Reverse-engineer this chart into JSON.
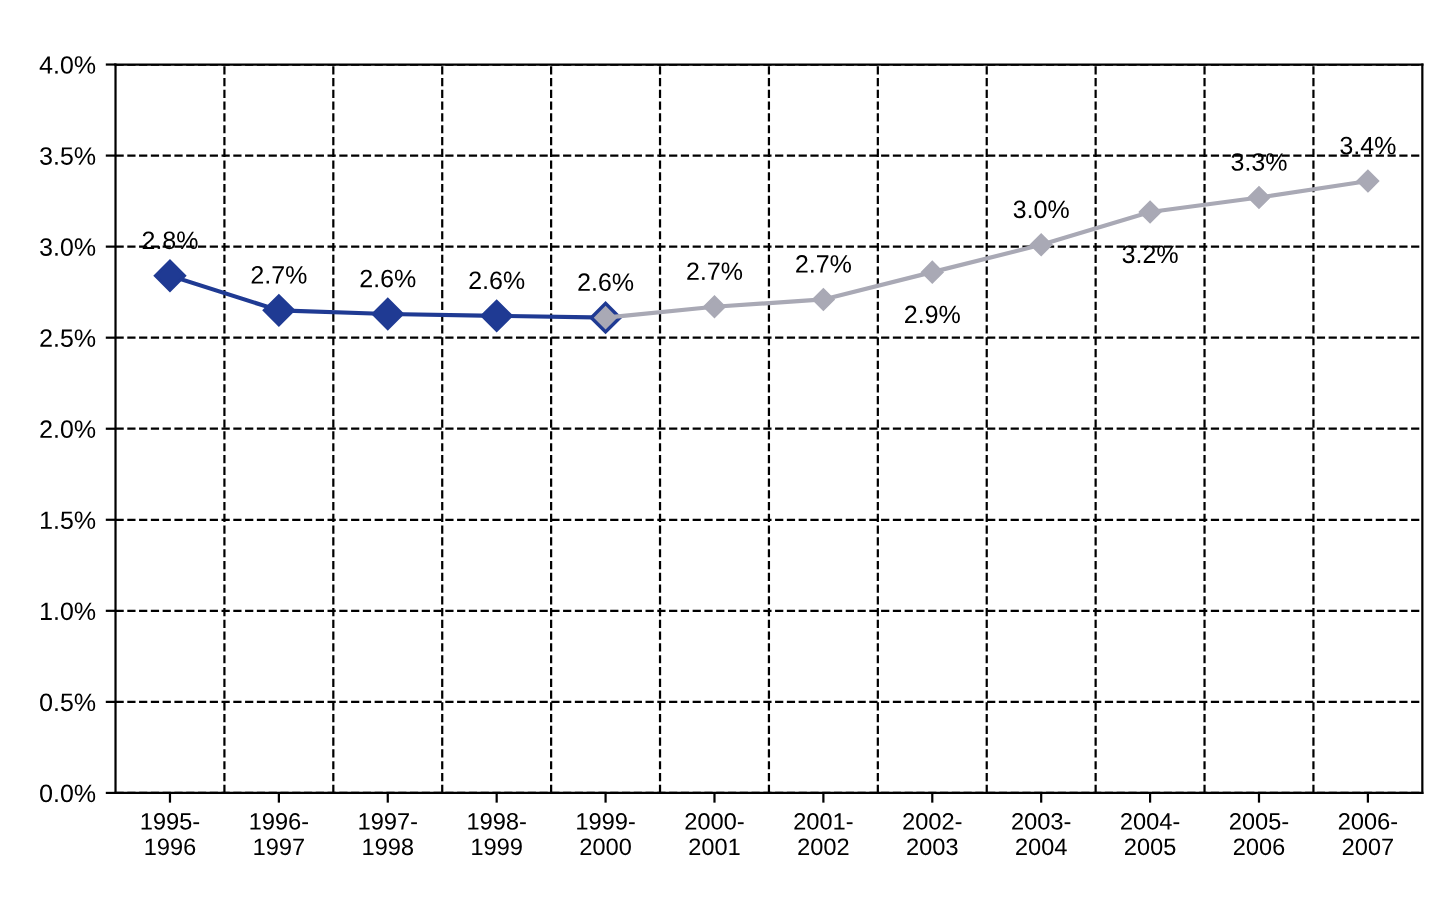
{
  "chart_data": {
    "type": "line",
    "categories": [
      "1995-\n1996",
      "1996-\n1997",
      "1997-\n1998",
      "1998-\n1999",
      "1999-\n2000",
      "2000-\n2001",
      "2001-\n2002",
      "2002-\n2003",
      "2003-\n2004",
      "2004-\n2005",
      "2005-\n2006",
      "2006-\n2007"
    ],
    "series": [
      {
        "color": "#1f3a93",
        "values": [
          2.84,
          2.65,
          2.63,
          2.62,
          2.61,
          null,
          null,
          null,
          null,
          null,
          null,
          null
        ],
        "value_labels": [
          "2.8%",
          "2.7%",
          "2.6%",
          "2.6%",
          null,
          null,
          null,
          null,
          null,
          null,
          null,
          null
        ]
      },
      {
        "color": "#a9a9b5",
        "values": [
          null,
          null,
          null,
          null,
          2.61,
          2.67,
          2.71,
          2.86,
          3.01,
          3.19,
          3.27,
          3.36
        ],
        "value_labels": [
          null,
          null,
          null,
          null,
          "2.6%",
          "2.7%",
          "2.7%",
          "2.9%",
          "3.0%",
          "3.2%",
          "3.3%",
          "3.4%"
        ]
      }
    ],
    "ylim": [
      0,
      4.0
    ],
    "yticks": [
      {
        "value": 0,
        "label": "0.0%"
      },
      {
        "value": 0.5,
        "label": "0.5%"
      },
      {
        "value": 1.0,
        "label": "1.0%"
      },
      {
        "value": 1.5,
        "label": "1.5%"
      },
      {
        "value": 2.0,
        "label": "2.0%"
      },
      {
        "value": 2.5,
        "label": "2.5%"
      },
      {
        "value": 3.0,
        "label": "3.0%"
      },
      {
        "value": 3.5,
        "label": "3.5%"
      },
      {
        "value": 4.0,
        "label": "4.0%"
      }
    ],
    "grid": true,
    "marker": "diamond",
    "line_style": "solid"
  }
}
